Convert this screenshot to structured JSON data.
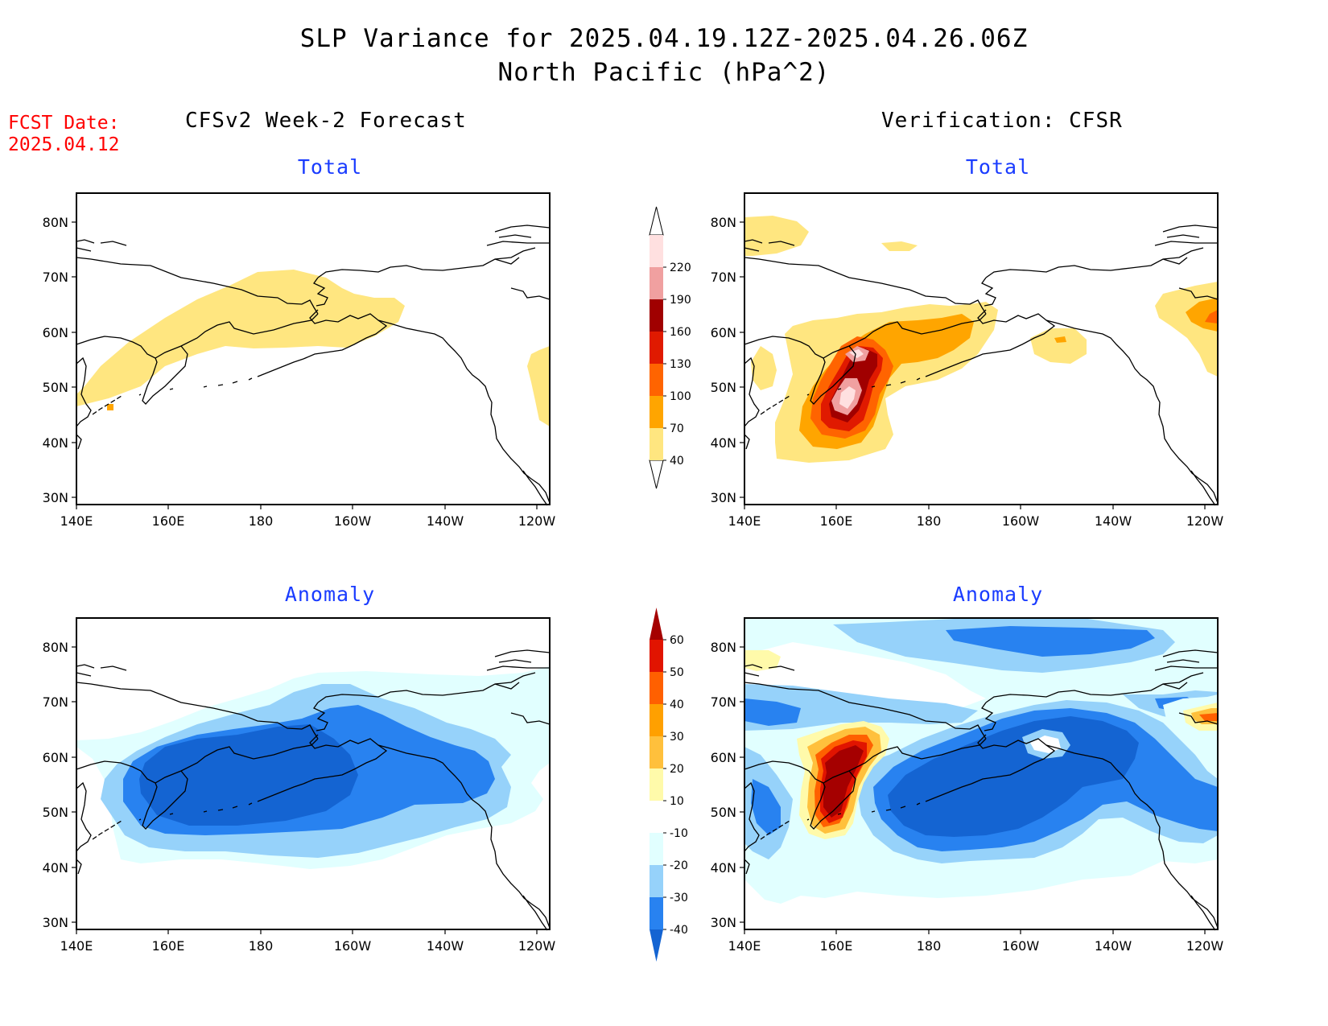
{
  "title_line1": "SLP Variance for 2025.04.19.12Z-2025.04.26.06Z",
  "title_line2": "North Pacific (hPa^2)",
  "fcst_date_label": "FCST Date:",
  "fcst_date_value": "2025.04.12",
  "left_column_title": "CFSv2 Week-2 Forecast",
  "right_column_title": "Verification: CFSR",
  "panel_titles": {
    "total": "Total",
    "anomaly": "Anomaly"
  },
  "lat_ticks": [
    "80N",
    "70N",
    "60N",
    "50N",
    "40N",
    "30N"
  ],
  "lon_ticks": [
    "140E",
    "160E",
    "180",
    "160W",
    "140W",
    "120W"
  ],
  "total_colorbar": {
    "levels": [
      "40",
      "70",
      "100",
      "130",
      "160",
      "190",
      "220"
    ],
    "colors": [
      "#ffe680",
      "#ffa500",
      "#ff6400",
      "#e01a00",
      "#a00000",
      "#f0a0a0",
      "#ffe0e0"
    ]
  },
  "anomaly_colorbar": {
    "levels": [
      "-40",
      "-30",
      "-20",
      "-10",
      "10",
      "20",
      "30",
      "40",
      "50",
      "60"
    ],
    "colors": [
      "#1464d2",
      "#2882f0",
      "#96d2fa",
      "#e1ffff",
      "#ffffff",
      "#fffaaa",
      "#ffc03c",
      "#ffa000",
      "#ff6000",
      "#e11400",
      "#a50000"
    ]
  }
}
